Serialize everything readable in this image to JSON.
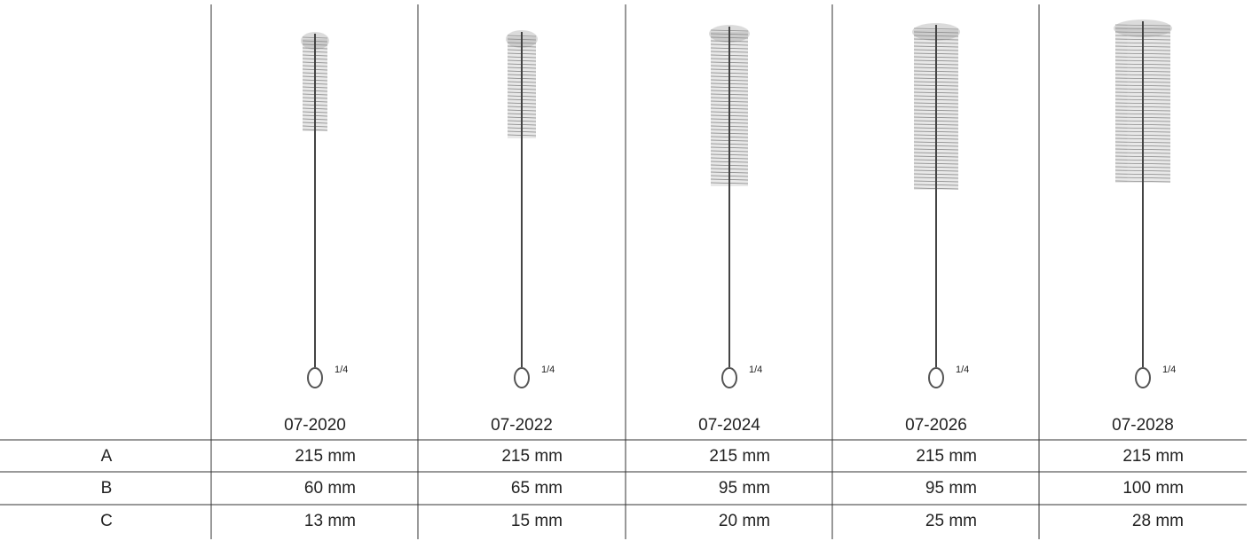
{
  "columns": [
    {
      "code": "07-2020",
      "fraction": "1/4"
    },
    {
      "code": "07-2022",
      "fraction": "1/4"
    },
    {
      "code": "07-2024",
      "fraction": "1/4"
    },
    {
      "code": "07-2026",
      "fraction": "1/4"
    },
    {
      "code": "07-2028",
      "fraction": "1/4"
    }
  ],
  "rows": [
    {
      "label": "A",
      "values": [
        "215 mm",
        "215 mm",
        "215 mm",
        "215 mm",
        "215 mm"
      ]
    },
    {
      "label": "B",
      "values": [
        "60 mm",
        "65 mm",
        "95 mm",
        "95 mm",
        "100 mm"
      ]
    },
    {
      "label": "C",
      "values": [
        "13 mm",
        "15 mm",
        "20 mm",
        "25 mm",
        "28 mm"
      ]
    }
  ]
}
